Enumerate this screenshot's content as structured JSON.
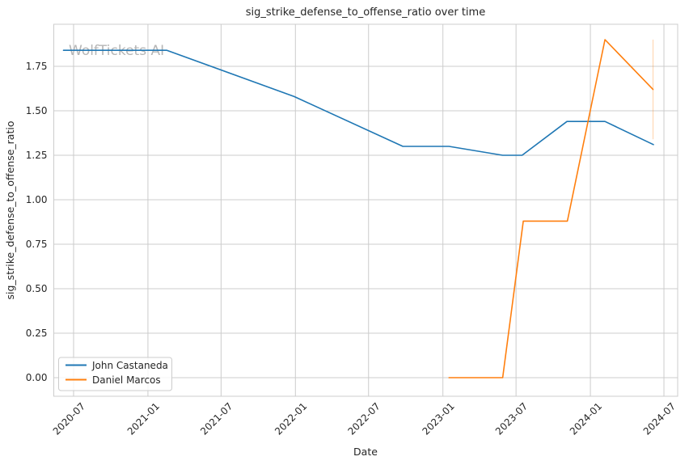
{
  "watermark": {
    "text": "WolfTickets AI"
  },
  "chart_data": {
    "type": "line",
    "title": "sig_strike_defense_to_offense_ratio over time",
    "xlabel": "Date",
    "ylabel": "sig_strike_defense_to_offense_ratio",
    "grid": true,
    "legend_position": "lower left",
    "xlim": [
      "2020-05-13",
      "2024-08-04"
    ],
    "ylim": [
      -0.1045,
      1.9864
    ],
    "x_ticks": [
      "2020-07-01",
      "2021-01-01",
      "2021-07-01",
      "2022-01-01",
      "2022-07-01",
      "2023-01-01",
      "2023-07-01",
      "2024-01-01",
      "2024-07-01"
    ],
    "x_tick_labels": [
      "2020-07",
      "2021-01",
      "2021-07",
      "2022-01",
      "2022-07",
      "2023-01",
      "2023-07",
      "2024-01",
      "2024-07"
    ],
    "y_ticks": [
      0.0,
      0.25,
      0.5,
      0.75,
      1.0,
      1.25,
      1.5,
      1.75
    ],
    "y_tick_labels": [
      "0.00",
      "0.25",
      "0.50",
      "0.75",
      "1.00",
      "1.25",
      "1.50",
      "1.75"
    ],
    "series": [
      {
        "name": "John Castaneda",
        "color": "#1f77b4",
        "points": [
          [
            "2020-06-06",
            1.84
          ],
          [
            "2021-02-17",
            1.84
          ],
          [
            "2021-12-29",
            1.58
          ],
          [
            "2022-09-24",
            1.3
          ],
          [
            "2023-01-16",
            1.3
          ],
          [
            "2023-05-29",
            1.25
          ],
          [
            "2023-07-16",
            1.25
          ],
          [
            "2023-11-04",
            1.44
          ],
          [
            "2024-02-06",
            1.44
          ],
          [
            "2024-06-05",
            1.31
          ]
        ]
      },
      {
        "name": "Daniel Marcos",
        "color": "#ff7f0e",
        "points": [
          [
            "2023-01-16",
            0.0
          ],
          [
            "2023-05-29",
            0.0
          ],
          [
            "2023-07-19",
            0.88
          ],
          [
            "2023-11-05",
            0.88
          ],
          [
            "2024-02-06",
            1.9
          ],
          [
            "2024-06-04",
            1.62
          ]
        ]
      }
    ],
    "annotations": [
      {
        "type": "vertical-line",
        "x": "2024-06-04",
        "y1": 1.34,
        "y2": 1.9,
        "color": "#ff7f0e",
        "opacity": 0.3
      }
    ],
    "colors": {
      "grid": "#cccccc",
      "spine": "#cccccc",
      "tick_text": "#262626"
    }
  }
}
